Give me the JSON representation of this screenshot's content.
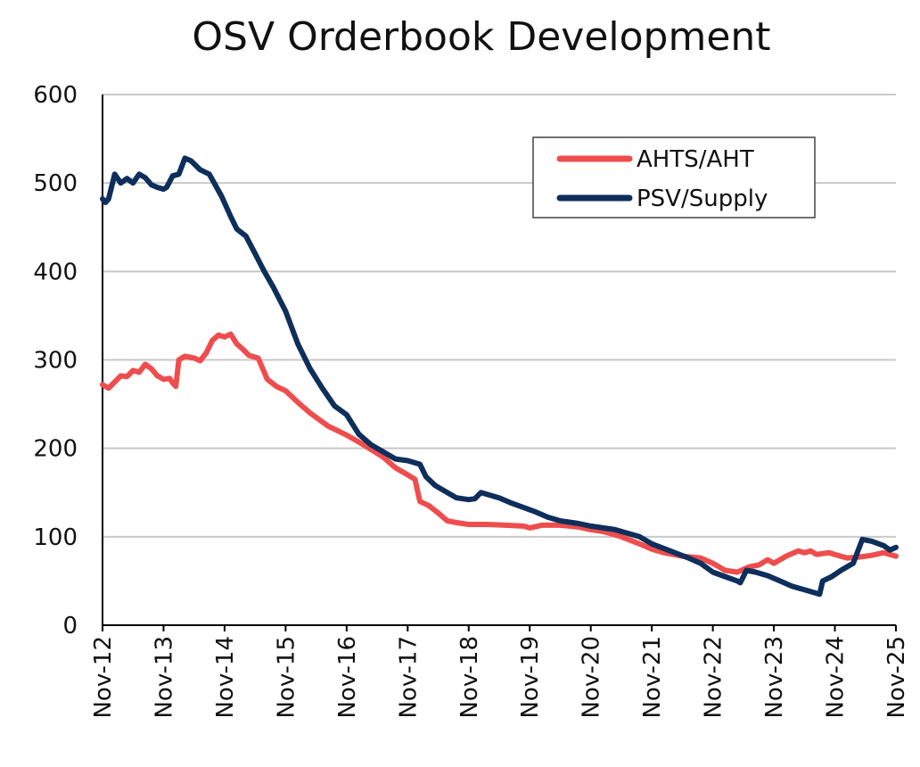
{
  "chart_data": {
    "type": "line",
    "title": "OSV Orderbook Development",
    "xlabel": "",
    "ylabel": "",
    "ylim": [
      0,
      600
    ],
    "yticks": [
      "0",
      "100",
      "200",
      "300",
      "400",
      "500",
      "600"
    ],
    "categories": [
      "Nov-12",
      "Nov-13",
      "Nov-14",
      "Nov-15",
      "Nov-16",
      "Nov-17",
      "Nov-18",
      "Nov-19",
      "Nov-20",
      "Nov-21",
      "Nov-22",
      "Nov-23",
      "Nov-24",
      "Nov-25"
    ],
    "grid": true,
    "legend": "top-right",
    "series": [
      {
        "name": "AHTS/AHT",
        "color": "#EF4D4D",
        "points": [
          [
            0.0,
            272
          ],
          [
            0.1,
            268
          ],
          [
            0.2,
            275
          ],
          [
            0.3,
            282
          ],
          [
            0.4,
            281
          ],
          [
            0.5,
            288
          ],
          [
            0.6,
            286
          ],
          [
            0.7,
            295
          ],
          [
            0.8,
            290
          ],
          [
            0.9,
            282
          ],
          [
            1.0,
            278
          ],
          [
            1.1,
            279
          ],
          [
            1.15,
            274
          ],
          [
            1.2,
            270
          ],
          [
            1.25,
            300
          ],
          [
            1.35,
            304
          ],
          [
            1.5,
            302
          ],
          [
            1.6,
            299
          ],
          [
            1.7,
            308
          ],
          [
            1.8,
            322
          ],
          [
            1.9,
            328
          ],
          [
            2.0,
            326
          ],
          [
            2.1,
            329
          ],
          [
            2.2,
            318
          ],
          [
            2.3,
            312
          ],
          [
            2.4,
            305
          ],
          [
            2.55,
            302
          ],
          [
            2.7,
            278
          ],
          [
            2.85,
            270
          ],
          [
            3.0,
            265
          ],
          [
            3.2,
            252
          ],
          [
            3.4,
            240
          ],
          [
            3.7,
            225
          ],
          [
            4.0,
            215
          ],
          [
            4.3,
            203
          ],
          [
            4.6,
            190
          ],
          [
            4.8,
            178
          ],
          [
            5.0,
            170
          ],
          [
            5.12,
            165
          ],
          [
            5.2,
            140
          ],
          [
            5.35,
            135
          ],
          [
            5.5,
            127
          ],
          [
            5.65,
            118
          ],
          [
            5.8,
            116
          ],
          [
            6.0,
            114
          ],
          [
            6.3,
            114
          ],
          [
            6.6,
            113
          ],
          [
            6.9,
            112
          ],
          [
            7.0,
            110
          ],
          [
            7.2,
            113
          ],
          [
            7.5,
            113
          ],
          [
            7.8,
            111
          ],
          [
            8.0,
            108
          ],
          [
            8.2,
            106
          ],
          [
            8.5,
            100
          ],
          [
            8.8,
            92
          ],
          [
            9.0,
            86
          ],
          [
            9.2,
            82
          ],
          [
            9.5,
            78
          ],
          [
            9.8,
            76
          ],
          [
            10.0,
            70
          ],
          [
            10.2,
            62
          ],
          [
            10.4,
            60
          ],
          [
            10.5,
            63
          ],
          [
            10.6,
            66
          ],
          [
            10.75,
            68
          ],
          [
            10.9,
            74
          ],
          [
            11.0,
            70
          ],
          [
            11.2,
            78
          ],
          [
            11.4,
            84
          ],
          [
            11.5,
            82
          ],
          [
            11.6,
            84
          ],
          [
            11.7,
            80
          ],
          [
            11.9,
            82
          ],
          [
            12.0,
            80
          ],
          [
            12.2,
            76
          ],
          [
            12.4,
            77
          ],
          [
            12.6,
            79
          ],
          [
            12.8,
            82
          ],
          [
            13.0,
            78
          ]
        ]
      },
      {
        "name": "PSV/Supply",
        "color": "#0E2F5C",
        "points": [
          [
            0.0,
            482
          ],
          [
            0.05,
            478
          ],
          [
            0.1,
            482
          ],
          [
            0.2,
            510
          ],
          [
            0.3,
            500
          ],
          [
            0.4,
            505
          ],
          [
            0.5,
            500
          ],
          [
            0.6,
            510
          ],
          [
            0.7,
            506
          ],
          [
            0.8,
            498
          ],
          [
            0.9,
            495
          ],
          [
            1.0,
            493
          ],
          [
            1.05,
            495
          ],
          [
            1.15,
            508
          ],
          [
            1.25,
            510
          ],
          [
            1.35,
            528
          ],
          [
            1.45,
            525
          ],
          [
            1.6,
            515
          ],
          [
            1.75,
            510
          ],
          [
            1.95,
            485
          ],
          [
            2.1,
            462
          ],
          [
            2.2,
            448
          ],
          [
            2.35,
            440
          ],
          [
            2.5,
            420
          ],
          [
            2.65,
            400
          ],
          [
            2.8,
            382
          ],
          [
            3.0,
            355
          ],
          [
            3.2,
            318
          ],
          [
            3.4,
            290
          ],
          [
            3.6,
            268
          ],
          [
            3.8,
            248
          ],
          [
            4.0,
            238
          ],
          [
            4.2,
            216
          ],
          [
            4.4,
            204
          ],
          [
            4.6,
            196
          ],
          [
            4.8,
            188
          ],
          [
            5.0,
            186
          ],
          [
            5.2,
            182
          ],
          [
            5.3,
            168
          ],
          [
            5.45,
            158
          ],
          [
            5.6,
            152
          ],
          [
            5.8,
            144
          ],
          [
            6.0,
            142
          ],
          [
            6.1,
            143
          ],
          [
            6.2,
            150
          ],
          [
            6.35,
            147
          ],
          [
            6.5,
            144
          ],
          [
            6.7,
            138
          ],
          [
            6.9,
            133
          ],
          [
            7.1,
            128
          ],
          [
            7.3,
            122
          ],
          [
            7.5,
            118
          ],
          [
            7.8,
            115
          ],
          [
            8.0,
            112
          ],
          [
            8.2,
            110
          ],
          [
            8.4,
            108
          ],
          [
            8.6,
            104
          ],
          [
            8.8,
            100
          ],
          [
            9.0,
            92
          ],
          [
            9.3,
            84
          ],
          [
            9.6,
            76
          ],
          [
            9.8,
            70
          ],
          [
            10.0,
            60
          ],
          [
            10.2,
            55
          ],
          [
            10.4,
            50
          ],
          [
            10.45,
            48
          ],
          [
            10.55,
            62
          ],
          [
            10.7,
            60
          ],
          [
            10.9,
            56
          ],
          [
            11.1,
            50
          ],
          [
            11.3,
            44
          ],
          [
            11.5,
            40
          ],
          [
            11.65,
            37
          ],
          [
            11.75,
            35
          ],
          [
            11.8,
            50
          ],
          [
            11.95,
            55
          ],
          [
            12.1,
            62
          ],
          [
            12.2,
            66
          ],
          [
            12.3,
            70
          ],
          [
            12.45,
            97
          ],
          [
            12.6,
            95
          ],
          [
            12.8,
            90
          ],
          [
            12.9,
            85
          ],
          [
            13.0,
            88
          ]
        ]
      }
    ]
  }
}
